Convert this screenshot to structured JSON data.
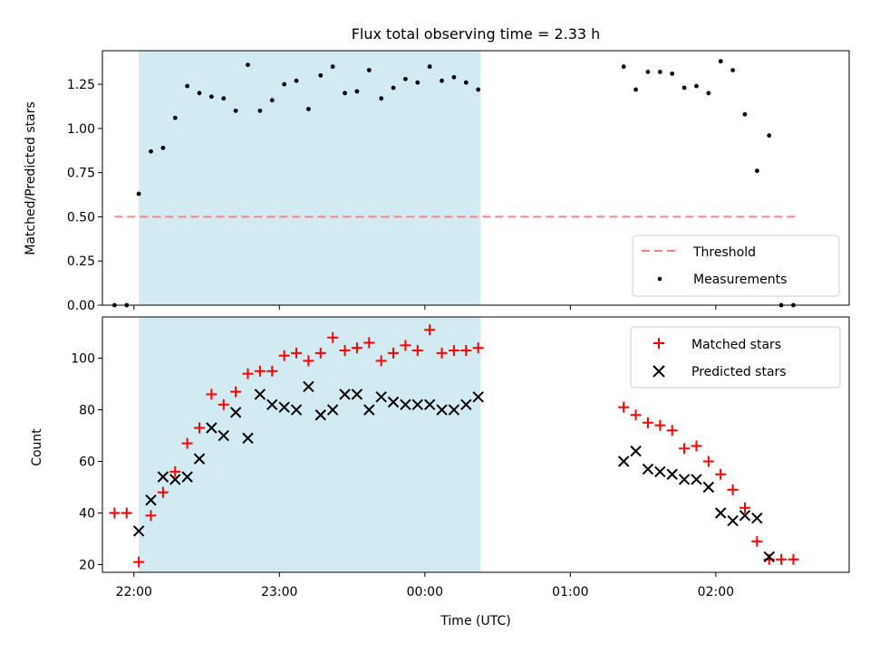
{
  "chart_data": [
    {
      "type": "scatter",
      "title": "Flux total observing time = 2.33 h",
      "ylabel": "Matched/Predicted stars",
      "xlabel": "",
      "xlim": [
        "21:47",
        "02:55"
      ],
      "ylim": [
        0,
        1.44
      ],
      "yticks": [
        0.0,
        0.25,
        0.5,
        0.75,
        1.0,
        1.25
      ],
      "ytick_labels": [
        "0.00",
        "0.25",
        "0.50",
        "0.75",
        "1.00",
        "1.25"
      ],
      "shaded_interval": [
        "22:02",
        "00:23"
      ],
      "threshold": {
        "value": 0.5,
        "from": "21:52",
        "to": "02:33",
        "color": "#ff7f7f"
      },
      "legend": {
        "position": "lower right",
        "entries": [
          "Threshold",
          "Measurements"
        ]
      },
      "series": [
        {
          "name": "Measurements",
          "color": "#000000",
          "marker": "dot",
          "x": [
            "21:52",
            "21:57",
            "22:02",
            "22:07",
            "22:12",
            "22:17",
            "22:22",
            "22:27",
            "22:32",
            "22:37",
            "22:42",
            "22:47",
            "22:52",
            "22:57",
            "23:02",
            "23:07",
            "23:12",
            "23:17",
            "23:22",
            "23:27",
            "23:32",
            "23:37",
            "23:42",
            "23:47",
            "23:52",
            "23:57",
            "00:02",
            "00:07",
            "00:12",
            "00:17",
            "00:22",
            "01:22",
            "01:27",
            "01:32",
            "01:37",
            "01:42",
            "01:47",
            "01:52",
            "01:57",
            "02:02",
            "02:07",
            "02:12",
            "02:17",
            "02:22",
            "02:27",
            "02:32"
          ],
          "y": [
            0.0,
            0.0,
            0.63,
            0.87,
            0.89,
            1.06,
            1.24,
            1.2,
            1.18,
            1.17,
            1.1,
            1.36,
            1.1,
            1.16,
            1.25,
            1.27,
            1.11,
            1.3,
            1.35,
            1.2,
            1.21,
            1.33,
            1.17,
            1.23,
            1.28,
            1.26,
            1.35,
            1.27,
            1.29,
            1.26,
            1.22,
            1.35,
            1.22,
            1.32,
            1.32,
            1.31,
            1.23,
            1.24,
            1.2,
            1.38,
            1.33,
            1.08,
            0.76,
            0.96,
            0.0,
            0.0
          ]
        }
      ]
    },
    {
      "type": "scatter",
      "title": "",
      "ylabel": "Count",
      "xlabel": "Time (UTC)",
      "xlim": [
        "21:47",
        "02:55"
      ],
      "ylim": [
        17,
        116
      ],
      "yticks": [
        20,
        40,
        60,
        80,
        100
      ],
      "xticks": [
        "22:00",
        "23:00",
        "00:00",
        "01:00",
        "02:00"
      ],
      "shaded_interval": [
        "22:02",
        "00:23"
      ],
      "legend": {
        "position": "upper right",
        "entries": [
          "Matched stars",
          "Predicted stars"
        ]
      },
      "series": [
        {
          "name": "Matched stars",
          "color": "#ff0000",
          "marker": "plus",
          "x": [
            "21:52",
            "21:57",
            "22:02",
            "22:07",
            "22:12",
            "22:17",
            "22:22",
            "22:27",
            "22:32",
            "22:37",
            "22:42",
            "22:47",
            "22:52",
            "22:57",
            "23:02",
            "23:07",
            "23:12",
            "23:17",
            "23:22",
            "23:27",
            "23:32",
            "23:37",
            "23:42",
            "23:47",
            "23:52",
            "23:57",
            "00:02",
            "00:07",
            "00:12",
            "00:17",
            "00:22",
            "01:22",
            "01:27",
            "01:32",
            "01:37",
            "01:42",
            "01:47",
            "01:52",
            "01:57",
            "02:02",
            "02:07",
            "02:12",
            "02:17",
            "02:22",
            "02:27",
            "02:32"
          ],
          "y": [
            40,
            40,
            21,
            39,
            48,
            56,
            67,
            73,
            86,
            82,
            87,
            94,
            95,
            95,
            101,
            102,
            99,
            102,
            108,
            103,
            104,
            106,
            99,
            102,
            105,
            103,
            111,
            102,
            103,
            103,
            104,
            81,
            78,
            75,
            74,
            72,
            65,
            66,
            60,
            55,
            49,
            42,
            29,
            22,
            22,
            22
          ]
        },
        {
          "name": "Predicted stars",
          "color": "#000000",
          "marker": "x",
          "x": [
            "22:02",
            "22:07",
            "22:12",
            "22:17",
            "22:22",
            "22:27",
            "22:32",
            "22:37",
            "22:42",
            "22:47",
            "22:52",
            "22:57",
            "23:02",
            "23:07",
            "23:12",
            "23:17",
            "23:22",
            "23:27",
            "23:32",
            "23:37",
            "23:42",
            "23:47",
            "23:52",
            "23:57",
            "00:02",
            "00:07",
            "00:12",
            "00:17",
            "00:22",
            "01:22",
            "01:27",
            "01:32",
            "01:37",
            "01:42",
            "01:47",
            "01:52",
            "01:57",
            "02:02",
            "02:07",
            "02:12",
            "02:17",
            "02:22"
          ],
          "y": [
            33,
            45,
            54,
            53,
            54,
            61,
            73,
            70,
            79,
            69,
            86,
            82,
            81,
            80,
            89,
            78,
            80,
            86,
            86,
            80,
            85,
            83,
            82,
            82,
            82,
            80,
            80,
            82,
            85,
            60,
            64,
            57,
            56,
            55,
            53,
            53,
            50,
            40,
            37,
            39,
            38,
            23
          ]
        }
      ]
    }
  ],
  "colors": {
    "shade": "#add8e6",
    "threshold": "#ff7f7f",
    "matched": "#ff0000",
    "predicted": "#000000"
  }
}
